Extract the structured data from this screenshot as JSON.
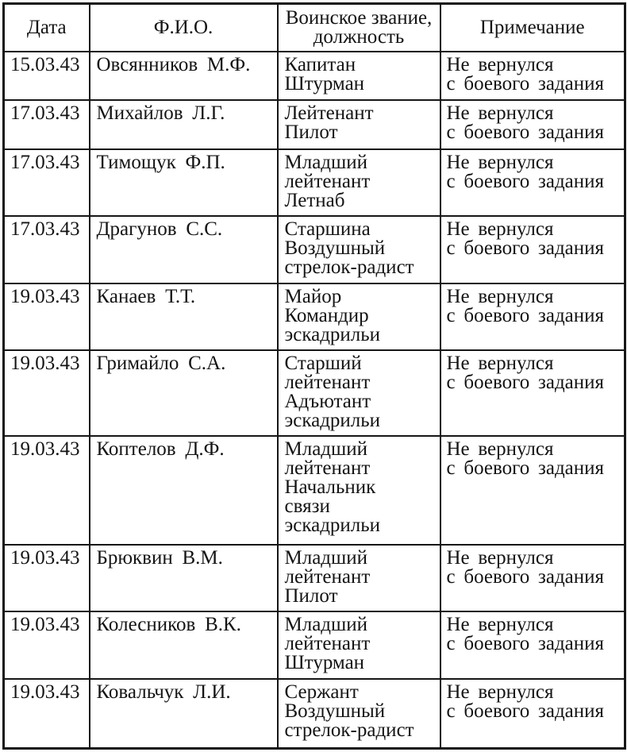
{
  "document": {
    "type": "scanned-table",
    "language": "ru"
  },
  "colors": {
    "background": "#ffffff",
    "border": "#161616",
    "text": "#141414"
  },
  "table": {
    "columns": [
      {
        "id": "date",
        "label_lines": [
          "Дата"
        ]
      },
      {
        "id": "name",
        "label_lines": [
          "Ф.И.О."
        ]
      },
      {
        "id": "rank",
        "label_lines": [
          "Воинское звание,",
          "должность"
        ]
      },
      {
        "id": "note",
        "label_lines": [
          "Примечание"
        ]
      }
    ],
    "rows": [
      {
        "date": "15.03.43",
        "name": "Овсянников М.Ф.",
        "rank_lines": [
          "Капитан",
          "Штурман"
        ],
        "note_lines": [
          "Не вернулся",
          "с боевого задания"
        ]
      },
      {
        "date": "17.03.43",
        "name": "Михайлов Л.Г.",
        "rank_lines": [
          "Лейтенант",
          "Пилот"
        ],
        "note_lines": [
          "Не вернулся",
          "с боевого задания"
        ]
      },
      {
        "date": "17.03.43",
        "name": "Тимощук Ф.П.",
        "rank_lines": [
          "Младший",
          "лейтенант",
          "Летнаб"
        ],
        "note_lines": [
          "Не вернулся",
          "с боевого задания"
        ]
      },
      {
        "date": "17.03.43",
        "name": "Драгунов С.С.",
        "rank_lines": [
          "Старшина",
          "Воздушный",
          "стрелок-радист"
        ],
        "note_lines": [
          "Не вернулся",
          "с боевого задания"
        ]
      },
      {
        "date": "19.03.43",
        "name": "Канаев Т.Т.",
        "rank_lines": [
          "Майор",
          "Командир",
          "эскадрильи"
        ],
        "note_lines": [
          "Не вернулся",
          "с боевого задания"
        ]
      },
      {
        "date": "19.03.43",
        "name": "Гримайло С.А.",
        "rank_lines": [
          "Старший",
          "лейтенант",
          "Адъютант",
          "эскадрильи"
        ],
        "note_lines": [
          "Не вернулся",
          "с боевого задания"
        ]
      },
      {
        "date": "19.03.43",
        "name": "Коптелов Д.Ф.",
        "rank_lines": [
          "Младший",
          "лейтенант",
          "Начальник",
          "связи",
          "эскадрильи"
        ],
        "note_lines": [
          "Не вернулся",
          "с боевого задания"
        ]
      },
      {
        "date": "19.03.43",
        "name": "Брюквин В.М.",
        "rank_lines": [
          "Младший",
          "лейтенант",
          "Пилот"
        ],
        "note_lines": [
          "Не вернулся",
          "с боевого задания"
        ]
      },
      {
        "date": "19.03.43",
        "name": "Колесников В.К.",
        "rank_lines": [
          "Младший",
          "лейтенант",
          "Штурман"
        ],
        "note_lines": [
          "Не вернулся",
          "с боевого задания"
        ]
      },
      {
        "date": "19.03.43",
        "name": "Ковальчук Л.И.",
        "rank_lines": [
          "Сержант",
          "Воздушный",
          "стрелок-радист"
        ],
        "note_lines": [
          "Не вернулся",
          "с боевого задания"
        ]
      }
    ]
  }
}
